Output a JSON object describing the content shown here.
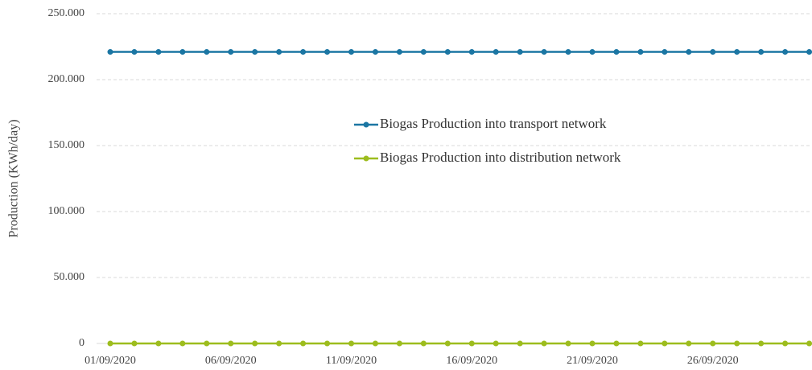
{
  "chart_data": {
    "type": "line",
    "y_label": "Production (KWh/day)",
    "categories": [
      "01/09/2020",
      null,
      null,
      null,
      null,
      "06/09/2020",
      null,
      null,
      null,
      null,
      "11/09/2020",
      null,
      null,
      null,
      null,
      "16/09/2020",
      null,
      null,
      null,
      null,
      "21/09/2020",
      null,
      null,
      null,
      null,
      "26/09/2020",
      null,
      null,
      null,
      null
    ],
    "series": [
      {
        "name": "Biogas Production into transport network",
        "color": "#1b76a3",
        "values": [
          221000,
          221000,
          221000,
          221000,
          221000,
          221000,
          221000,
          221000,
          221000,
          221000,
          221000,
          221000,
          221000,
          221000,
          221000,
          221000,
          221000,
          221000,
          221000,
          221000,
          221000,
          221000,
          221000,
          221000,
          221000,
          221000,
          221000,
          221000,
          221000,
          221000
        ]
      },
      {
        "name": "Biogas Production into distribution network",
        "color": "#9dbd1e",
        "values": [
          0,
          0,
          0,
          0,
          0,
          0,
          0,
          0,
          0,
          0,
          0,
          0,
          0,
          0,
          0,
          0,
          0,
          0,
          0,
          0,
          0,
          0,
          0,
          0,
          0,
          0,
          0,
          0,
          0,
          0
        ]
      }
    ],
    "ylim": [
      0,
      250000
    ],
    "yticks": [
      0,
      {
        "value": 50000,
        "label": "50.000"
      },
      {
        "value": 100000,
        "label": "100.000"
      },
      {
        "value": 150000,
        "label": "150.000"
      },
      {
        "value": 200000,
        "label": "200.000"
      },
      {
        "value": 250000,
        "label": "250.000"
      }
    ],
    "grid": true,
    "legend": "center"
  }
}
